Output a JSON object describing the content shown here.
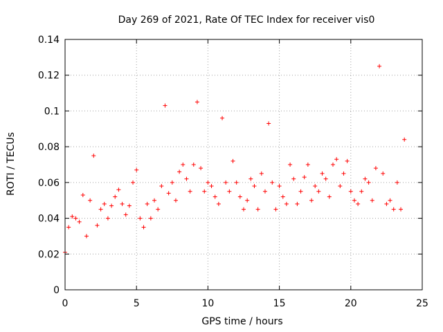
{
  "chart_data": {
    "type": "scatter",
    "title": "Day 269 of 2021, Rate Of TEC Index for receiver vis0",
    "xlabel": "GPS time / hours",
    "ylabel": "ROTI / TECUs",
    "xlim": [
      0,
      25
    ],
    "ylim": [
      0,
      0.14
    ],
    "x_ticks": [
      "0",
      "5",
      "10",
      "15",
      "20",
      "25"
    ],
    "x_tick_values": [
      0,
      5,
      10,
      15,
      20,
      25
    ],
    "y_ticks": [
      "0",
      "0.02",
      "0.04",
      "0.06",
      "0.08",
      "0.1",
      "0.12",
      "0.14"
    ],
    "y_tick_values": [
      0,
      0.02,
      0.04,
      0.06,
      0.08,
      0.1,
      0.12,
      0.14
    ],
    "grid": true,
    "marker": "plus",
    "color": "#ff0000",
    "series": [
      {
        "x": [
          0.0,
          0.25,
          0.5,
          0.75,
          1.0,
          1.25,
          1.5,
          1.75,
          2.0,
          2.25,
          2.5,
          2.75,
          3.0,
          3.25,
          3.5,
          3.75,
          4.0,
          4.25,
          4.5,
          4.75,
          5.0,
          5.25,
          5.5,
          5.75,
          6.0,
          6.25,
          6.5,
          6.75,
          7.0,
          7.25,
          7.5,
          7.75,
          8.0,
          8.25,
          8.5,
          8.75,
          9.0,
          9.25,
          9.5,
          9.75,
          10.0,
          10.25,
          10.5,
          10.75,
          11.0,
          11.25,
          11.5,
          11.75,
          12.0,
          12.25,
          12.5,
          12.75,
          13.0,
          13.25,
          13.5,
          13.75,
          14.0,
          14.25,
          14.5,
          14.75,
          15.0,
          15.25,
          15.5,
          15.75,
          16.0,
          16.25,
          16.5,
          16.75,
          17.0,
          17.25,
          17.5,
          17.75,
          18.0,
          18.25,
          18.5,
          18.75,
          19.0,
          19.25,
          19.5,
          19.75,
          20.0,
          20.25,
          20.5,
          20.75,
          21.0,
          21.25,
          21.5,
          21.75,
          22.0,
          22.25,
          22.5,
          22.75,
          23.0,
          23.25,
          23.5,
          23.75
        ],
        "y": [
          0.021,
          0.035,
          0.041,
          0.04,
          0.038,
          0.053,
          0.03,
          0.05,
          0.075,
          0.036,
          0.045,
          0.048,
          0.04,
          0.047,
          0.052,
          0.056,
          0.048,
          0.042,
          0.047,
          0.06,
          0.067,
          0.04,
          0.035,
          0.048,
          0.04,
          0.05,
          0.045,
          0.058,
          0.103,
          0.054,
          0.06,
          0.05,
          0.066,
          0.07,
          0.062,
          0.055,
          0.07,
          0.105,
          0.068,
          0.055,
          0.06,
          0.058,
          0.052,
          0.048,
          0.096,
          0.06,
          0.055,
          0.072,
          0.06,
          0.052,
          0.045,
          0.05,
          0.062,
          0.058,
          0.045,
          0.065,
          0.055,
          0.093,
          0.06,
          0.045,
          0.058,
          0.052,
          0.048,
          0.07,
          0.062,
          0.048,
          0.055,
          0.063,
          0.07,
          0.05,
          0.058,
          0.055,
          0.065,
          0.062,
          0.052,
          0.07,
          0.073,
          0.058,
          0.065,
          0.072,
          0.055,
          0.05,
          0.048,
          0.055,
          0.062,
          0.06,
          0.05,
          0.068,
          0.125,
          0.065,
          0.048,
          0.05,
          0.045,
          0.06,
          0.045,
          0.084
        ]
      }
    ]
  }
}
